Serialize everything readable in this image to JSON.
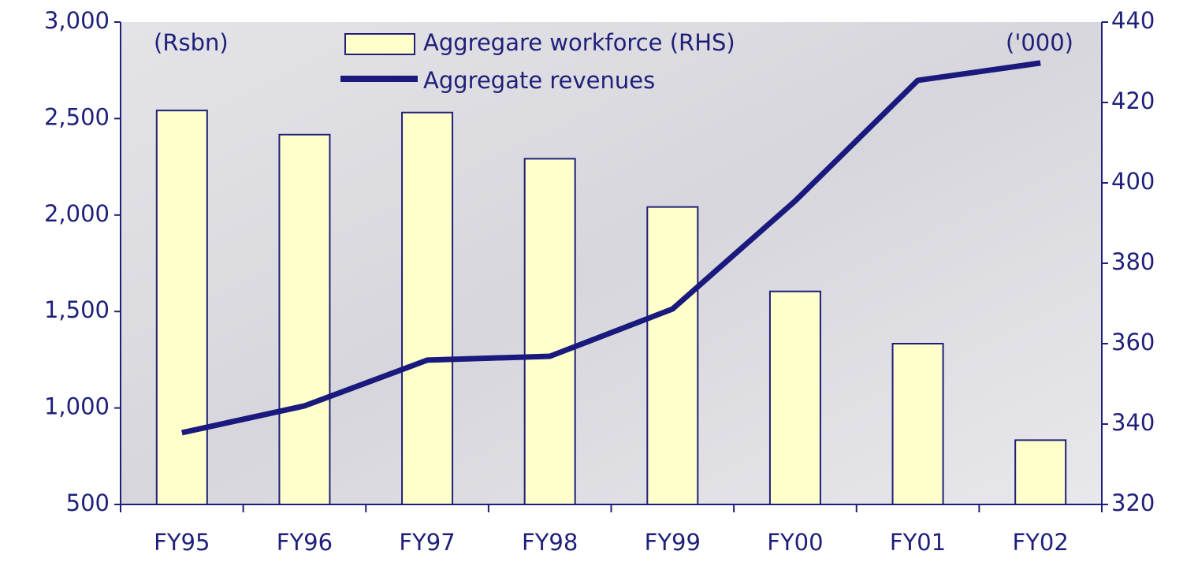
{
  "chart_data": {
    "type": "bar-line",
    "annotations": {
      "left_unit": "(Rsbn)",
      "right_unit": "('000)"
    },
    "categories": [
      "FY95",
      "FY96",
      "FY97",
      "FY98",
      "FY99",
      "FY00",
      "FY01",
      "FY02"
    ],
    "series": [
      {
        "name": "Aggregare workforce (RHS)",
        "type": "bar",
        "axis": "y2",
        "color": "#ffffcc",
        "values": [
          418,
          412,
          417.5,
          406,
          394,
          373,
          360,
          336
        ]
      },
      {
        "name": "Aggregate revenues",
        "type": "line",
        "axis": "y",
        "color": "#1a1a7e",
        "values": [
          872,
          1011,
          1248,
          1268,
          1513,
          2073,
          2698,
          2788
        ]
      }
    ],
    "ylim": [
      500,
      3000
    ],
    "yticks": [
      {
        "value": 500,
        "label": "500"
      },
      {
        "value": 1000,
        "label": "1,000"
      },
      {
        "value": 1500,
        "label": "1,500"
      },
      {
        "value": 2000,
        "label": "2,000"
      },
      {
        "value": 2500,
        "label": "2,500"
      },
      {
        "value": 3000,
        "label": "3,000"
      }
    ],
    "y2lim": [
      320,
      440
    ],
    "y2ticks": [
      320,
      340,
      360,
      380,
      400,
      420,
      440
    ]
  }
}
